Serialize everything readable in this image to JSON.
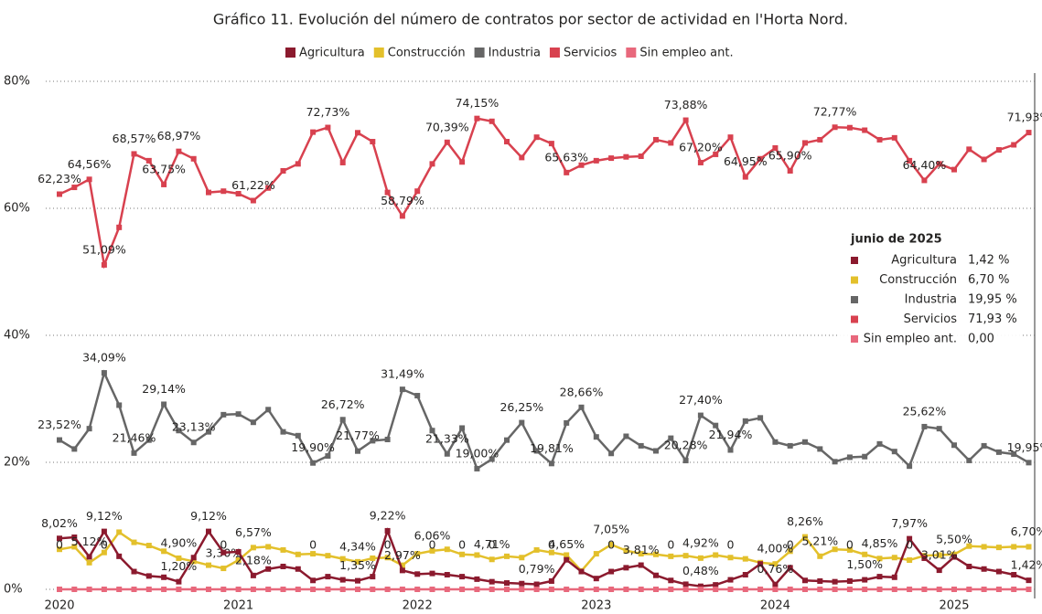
{
  "chart_data": {
    "type": "line",
    "title": "Gráfico 11. Evolución del número de contratos por sector de actividad en l'Horta Nord.",
    "categories": [
      "2020",
      null,
      null,
      null,
      null,
      null,
      null,
      null,
      null,
      null,
      null,
      null,
      "2021",
      null,
      null,
      null,
      null,
      null,
      null,
      null,
      null,
      null,
      null,
      null,
      "2022",
      null,
      null,
      null,
      null,
      null,
      null,
      null,
      null,
      null,
      null,
      null,
      "2023",
      null,
      null,
      null,
      null,
      null,
      null,
      null,
      null,
      null,
      null,
      null,
      "2024",
      null,
      null,
      null,
      null,
      null,
      null,
      null,
      null,
      null,
      null,
      null,
      "2025",
      null,
      null,
      null,
      null,
      null
    ],
    "ylim": [
      0,
      80
    ],
    "yticks": [
      {
        "value": 0,
        "label": "0%"
      },
      {
        "value": 20,
        "label": "20%"
      },
      {
        "value": 40,
        "label": "40%"
      },
      {
        "value": 60,
        "label": "60%"
      },
      {
        "value": 80,
        "label": "80%"
      }
    ],
    "grid": true,
    "legend": "top",
    "series": [
      {
        "name": "Agricultura",
        "color": "#8b1a2e",
        "values": [
          8.02,
          8.2,
          5.12,
          9.12,
          5.2,
          2.8,
          2.1,
          1.9,
          1.2,
          5.0,
          9.12,
          5.8,
          5.9,
          2.18,
          3.2,
          3.6,
          3.2,
          1.4,
          2.0,
          1.5,
          1.35,
          2.0,
          9.22,
          2.97,
          2.4,
          2.5,
          2.3,
          2.0,
          1.6,
          1.2,
          1.0,
          0.9,
          0.79,
          1.3,
          4.65,
          2.8,
          1.7,
          2.8,
          3.4,
          3.81,
          2.2,
          1.4,
          0.8,
          0.48,
          0.7,
          1.5,
          2.3,
          4.0,
          0.76,
          3.4,
          1.4,
          1.3,
          1.2,
          1.3,
          1.5,
          2.0,
          1.9,
          7.97,
          4.9,
          3.01,
          5.1,
          3.6,
          3.2,
          2.8,
          2.3,
          1.42
        ],
        "value_labels": [
          "8,02%",
          null,
          "5,12%",
          "9,12%",
          null,
          null,
          null,
          null,
          "1,20%",
          null,
          "9,12%",
          null,
          null,
          "2,18%",
          null,
          null,
          null,
          null,
          null,
          null,
          "1,35%",
          null,
          "9,22%",
          "2,97%",
          null,
          null,
          null,
          null,
          null,
          null,
          null,
          null,
          "0,79%",
          null,
          "4,65%",
          null,
          null,
          null,
          null,
          "3,81%",
          null,
          null,
          null,
          "0,48%",
          null,
          null,
          null,
          null,
          "0,76%",
          null,
          null,
          null,
          null,
          null,
          "1,50%",
          null,
          null,
          "7,97%",
          null,
          "3,01%",
          null,
          null,
          null,
          null,
          null,
          "1,42%"
        ]
      },
      {
        "name": "Construcción",
        "color": "#e3c02b",
        "values": [
          6.3,
          6.7,
          4.2,
          5.8,
          9.0,
          7.4,
          6.9,
          6.0,
          4.9,
          4.4,
          3.8,
          3.3,
          4.6,
          6.57,
          6.7,
          6.2,
          5.5,
          5.6,
          5.3,
          4.8,
          4.34,
          4.9,
          5.0,
          3.8,
          5.6,
          6.06,
          6.3,
          5.5,
          5.4,
          4.71,
          5.2,
          5.0,
          6.2,
          5.8,
          5.4,
          2.9,
          5.6,
          7.05,
          6.1,
          5.6,
          5.5,
          5.2,
          5.3,
          4.92,
          5.4,
          5.0,
          4.8,
          4.2,
          4.0,
          6.0,
          8.26,
          5.21,
          6.3,
          6.2,
          5.5,
          4.85,
          5.0,
          4.6,
          5.3,
          5.4,
          5.5,
          6.8,
          6.7,
          6.6,
          6.7,
          6.7
        ],
        "value_labels": [
          null,
          null,
          null,
          null,
          null,
          null,
          null,
          null,
          "4,90%",
          null,
          null,
          "3,30%",
          null,
          "6,57%",
          null,
          null,
          null,
          null,
          null,
          null,
          "4,34%",
          null,
          null,
          null,
          null,
          "6,06%",
          null,
          null,
          null,
          "4,71%",
          null,
          null,
          null,
          null,
          null,
          null,
          null,
          "7,05%",
          null,
          null,
          null,
          null,
          null,
          "4,92%",
          null,
          null,
          null,
          null,
          "4,00%",
          null,
          "8,26%",
          "5,21%",
          null,
          null,
          null,
          "4,85%",
          null,
          null,
          null,
          null,
          "5,50%",
          null,
          null,
          null,
          null,
          "6,70%"
        ]
      },
      {
        "name": "Industria",
        "color": "#666666",
        "values": [
          23.52,
          22.1,
          25.3,
          34.09,
          29,
          21.46,
          23.5,
          29.14,
          25,
          23.13,
          24.8,
          27.5,
          27.6,
          26.3,
          28.3,
          24.8,
          24.2,
          19.9,
          21,
          26.72,
          21.77,
          23.4,
          23.6,
          31.49,
          30.5,
          25,
          21.33,
          25.4,
          19.0,
          20.5,
          23.5,
          26.25,
          21.8,
          19.81,
          26.2,
          28.66,
          24,
          21.4,
          24.1,
          22.6,
          21.8,
          23.8,
          20.28,
          27.4,
          25.8,
          21.94,
          26.5,
          27,
          23.2,
          22.6,
          23.2,
          22.1,
          20.1,
          20.8,
          20.9,
          22.9,
          21.7,
          19.4,
          25.62,
          25.3,
          22.7,
          20.3,
          22.6,
          21.6,
          21.3,
          19.95
        ],
        "value_labels": [
          "23,52%",
          null,
          null,
          "34,09%",
          null,
          "21,46%",
          null,
          "29,14%",
          null,
          "23,13%",
          null,
          null,
          null,
          null,
          null,
          null,
          null,
          "19,90%",
          null,
          "26,72%",
          "21,77%",
          null,
          null,
          "31,49%",
          null,
          null,
          "21,33%",
          null,
          "19,00%",
          null,
          null,
          "26,25%",
          null,
          "19,81%",
          null,
          "28,66%",
          null,
          null,
          null,
          null,
          null,
          null,
          "20,28%",
          "27,40%",
          null,
          "21,94%",
          null,
          null,
          null,
          null,
          null,
          null,
          null,
          null,
          null,
          null,
          null,
          null,
          "25,62%",
          null,
          null,
          null,
          null,
          null,
          null,
          "19,95%"
        ]
      },
      {
        "name": "Servicios",
        "color": "#d8414f",
        "values": [
          62.23,
          63.3,
          64.56,
          51.09,
          57,
          68.57,
          67.5,
          63.75,
          68.97,
          67.8,
          62.5,
          62.7,
          62.3,
          61.22,
          63.2,
          65.9,
          67,
          72,
          72.73,
          67.2,
          71.9,
          70.5,
          62.5,
          58.79,
          62.7,
          67,
          70.39,
          67.3,
          74.15,
          73.7,
          70.5,
          68,
          71.2,
          70.2,
          65.63,
          66.8,
          67.5,
          67.9,
          68.1,
          68.2,
          70.8,
          70.3,
          73.88,
          67.2,
          68.5,
          71.2,
          64.95,
          67.8,
          69.5,
          65.9,
          70.3,
          70.8,
          72.77,
          72.7,
          72.3,
          70.8,
          71.1,
          67.5,
          64.4,
          67,
          66.1,
          69.3,
          67.7,
          69.2,
          70,
          71.93
        ],
        "value_labels": [
          "62,23%",
          null,
          "64,56%",
          "51,09%",
          null,
          "68,57%",
          null,
          "63,75%",
          "68,97%",
          null,
          null,
          null,
          null,
          "61,22%",
          null,
          null,
          null,
          null,
          "72,73%",
          null,
          null,
          null,
          null,
          "58,79%",
          null,
          null,
          "70,39%",
          null,
          "74,15%",
          null,
          null,
          null,
          null,
          null,
          "65,63%",
          null,
          null,
          null,
          null,
          null,
          null,
          null,
          "73,88%",
          "67,20%",
          null,
          null,
          "64,95%",
          null,
          null,
          "65,90%",
          null,
          null,
          "72,77%",
          null,
          null,
          null,
          null,
          null,
          "64,40%",
          null,
          null,
          null,
          null,
          null,
          null,
          "71,93%"
        ]
      },
      {
        "name": "Sin empleo ant.",
        "color": "#e8687c",
        "values": [
          0,
          0,
          0,
          0,
          0,
          0,
          0,
          0,
          0,
          0,
          0,
          0,
          0,
          0,
          0,
          0,
          0,
          0,
          0,
          0,
          0,
          0,
          0,
          0,
          0,
          0,
          0,
          0,
          0,
          0,
          0,
          0,
          0,
          0,
          0,
          0,
          0,
          0,
          0,
          0,
          0,
          0,
          0,
          0,
          0,
          0,
          0,
          0,
          0,
          0,
          0,
          0,
          0,
          0,
          0,
          0,
          0,
          0,
          0,
          0,
          0,
          0,
          0,
          0,
          0,
          0
        ],
        "value_labels": [
          "0",
          null,
          null,
          "0",
          null,
          null,
          null,
          null,
          null,
          null,
          null,
          "0",
          null,
          null,
          null,
          null,
          null,
          "0",
          null,
          null,
          null,
          null,
          "0",
          null,
          null,
          "0",
          null,
          "0",
          null,
          "0",
          null,
          null,
          null,
          "0",
          null,
          null,
          null,
          "0",
          null,
          null,
          null,
          "0",
          null,
          null,
          null,
          "0",
          null,
          null,
          null,
          "0",
          null,
          null,
          null,
          "0",
          null,
          null,
          null,
          "0",
          null,
          null,
          null,
          null,
          null,
          null,
          null,
          null
        ]
      }
    ],
    "tooltip": {
      "title": "junio de 2025",
      "items": [
        {
          "name": "Agricultura",
          "value": "1,42 %"
        },
        {
          "name": "Construcción",
          "value": "6,70 %"
        },
        {
          "name": "Industria",
          "value": "19,95 %"
        },
        {
          "name": "Servicios",
          "value": "71,93 %"
        },
        {
          "name": "Sin empleo ant.",
          "value": "0,00"
        }
      ]
    }
  }
}
